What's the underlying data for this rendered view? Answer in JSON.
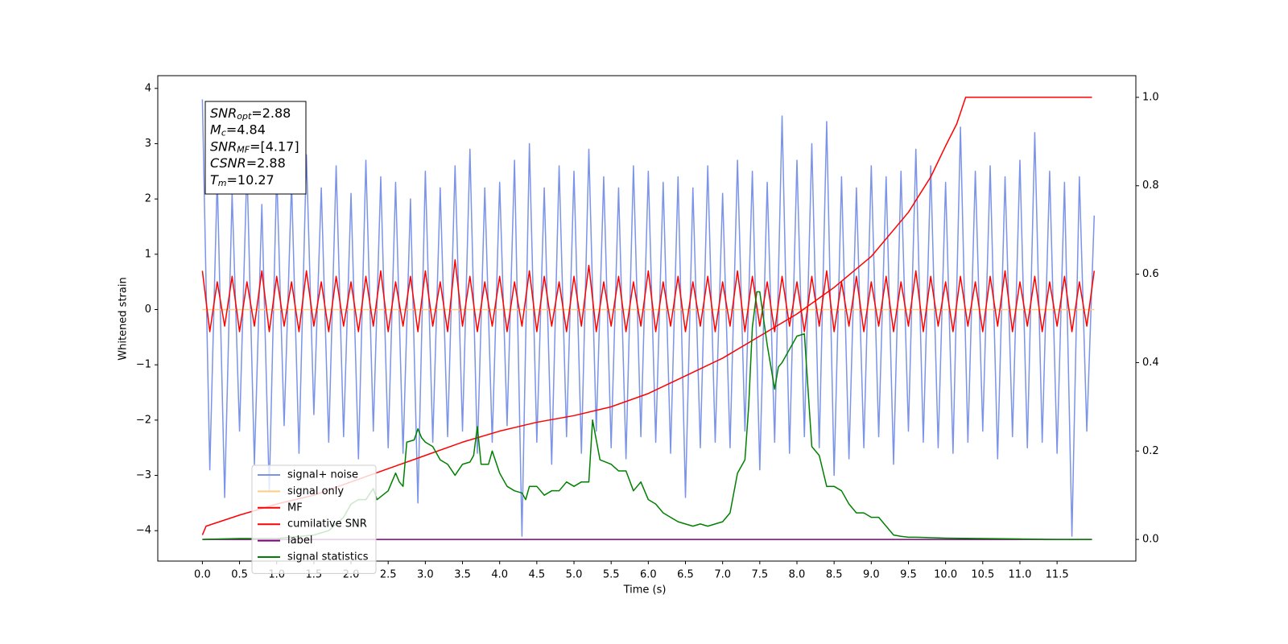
{
  "chart_data": {
    "type": "line",
    "xlabel": "Time (s)",
    "ylabel": "Whitened strain",
    "xlim": [
      -0.6,
      12.56
    ],
    "ylim": [
      -4.55,
      4.23
    ],
    "y2lim": [
      -0.049,
      1.049
    ],
    "xticks": [
      {
        "value": 0,
        "label": "0.0"
      },
      0.5,
      {
        "value": 1,
        "label": "1.0"
      },
      1.5,
      {
        "value": 2,
        "label": "2.0"
      },
      2.5,
      {
        "value": 3,
        "label": "3.0"
      },
      3.5,
      {
        "value": 4,
        "label": "4.0"
      },
      4.5,
      {
        "value": 5,
        "label": "5.0"
      },
      5.5,
      {
        "value": 6,
        "label": "6.0"
      },
      6.5,
      {
        "value": 7,
        "label": "7.0"
      },
      7.5,
      {
        "value": 8,
        "label": "8.0"
      },
      8.5,
      {
        "value": 9,
        "label": "9.0"
      },
      9.5,
      {
        "value": 10,
        "label": "10.0"
      },
      10.5,
      {
        "value": 11,
        "label": "11.0"
      },
      11.5
    ],
    "yticks": [
      {
        "value": -4,
        "label": "−4"
      },
      {
        "value": -3,
        "label": "−3"
      },
      {
        "value": -2,
        "label": "−2"
      },
      {
        "value": -1,
        "label": "−1"
      },
      0,
      1,
      2,
      3,
      4
    ],
    "y2ticks": [
      {
        "value": 0,
        "label": "0.0"
      },
      0.2,
      0.4,
      0.6,
      0.8,
      {
        "value": 1,
        "label": "1.0"
      }
    ],
    "legend": "lower left",
    "annotation": [
      {
        "symbol": "SNR",
        "sub": "opt",
        "text": "=2.88"
      },
      {
        "symbol": "M",
        "sub": "c",
        "text": "=4.84"
      },
      {
        "symbol": "SNR",
        "sub": "MF",
        "text": "=[4.17]"
      },
      {
        "symbol": "CSNR",
        "text": "=2.88"
      },
      {
        "symbol": "T",
        "sub": "m",
        "text": "=10.27"
      }
    ],
    "x": [
      0,
      0.1,
      0.2,
      0.3,
      0.4,
      0.5,
      0.6,
      0.7,
      0.8,
      0.9,
      1,
      1.1,
      1.2,
      1.3,
      1.4,
      1.5,
      1.6,
      1.7,
      1.8,
      1.9,
      2,
      2.1,
      2.2,
      2.3,
      2.4,
      2.5,
      2.6,
      2.7,
      2.8,
      2.9,
      3,
      3.1,
      3.2,
      3.3,
      3.4,
      3.5,
      3.6,
      3.7,
      3.8,
      3.9,
      4,
      4.1,
      4.2,
      4.3,
      4.4,
      4.5,
      4.6,
      4.7,
      4.8,
      4.9,
      5,
      5.1,
      5.2,
      5.3,
      5.4,
      5.5,
      5.6,
      5.7,
      5.8,
      5.9,
      6,
      6.1,
      6.2,
      6.3,
      6.4,
      6.5,
      6.6,
      6.7,
      6.8,
      6.9,
      7,
      7.1,
      7.2,
      7.3,
      7.4,
      7.5,
      7.6,
      7.7,
      7.8,
      7.9,
      8,
      8.1,
      8.2,
      8.3,
      8.4,
      8.5,
      8.6,
      8.7,
      8.8,
      8.9,
      9,
      9.1,
      9.2,
      9.3,
      9.4,
      9.5,
      9.6,
      9.7,
      9.8,
      9.9,
      10,
      10.1,
      10.2,
      10.3,
      10.4,
      10.5,
      10.6,
      10.7,
      10.8,
      10.9,
      11,
      11.1,
      11.2,
      11.3,
      11.4,
      11.5,
      11.6,
      11.7,
      11.8,
      11.9,
      12
    ],
    "series": [
      {
        "name": "signal+ noise",
        "color": "#7b93e8",
        "axis": "y",
        "values": [
          3.8,
          -2.9,
          2.4,
          -3.4,
          2.1,
          -2.2,
          2.6,
          -2.8,
          1.9,
          -3.3,
          2.5,
          -2.1,
          2.3,
          -2.6,
          2.8,
          -1.9,
          2.2,
          -2.4,
          2.6,
          -2.3,
          2.1,
          -2.7,
          2.7,
          -2.2,
          2.4,
          -2.5,
          2.3,
          -2.6,
          2,
          -3.5,
          2.5,
          -2.4,
          2.2,
          -2.3,
          2.6,
          -2.2,
          2.9,
          -2.6,
          2.2,
          -2.4,
          2.3,
          -2.1,
          2.7,
          -4.1,
          3,
          -2.4,
          2.2,
          -2.8,
          2.6,
          -2.3,
          2.5,
          -2.6,
          2.9,
          -2.2,
          2.4,
          -2.5,
          2.2,
          -2.7,
          2.6,
          -2.3,
          2.5,
          -2.4,
          2.3,
          -2.6,
          2.4,
          -3.4,
          2.2,
          -2.5,
          2.6,
          -2.4,
          2.1,
          -2.5,
          2.7,
          -2.2,
          2.5,
          -2.9,
          2.3,
          -2.4,
          3.5,
          -2.6,
          2.7,
          -2.3,
          3,
          -2.5,
          3.4,
          -3,
          2.4,
          -2.7,
          2.2,
          -2.5,
          2.6,
          -2.3,
          2.4,
          -2.8,
          2.5,
          -2.2,
          2.9,
          -2.4,
          2.6,
          -2.5,
          2.3,
          -2.6,
          3.3,
          -2.4,
          2.5,
          -2.2,
          2.6,
          -2.7,
          2.4,
          -2.3,
          2.7,
          -2.5,
          3.2,
          -2.4,
          2.5,
          -2.6,
          2.3,
          -4.1,
          2.4,
          -2.2,
          1.7
        ]
      },
      {
        "name": "signal only",
        "color": "#ffcc80",
        "axis": "y",
        "x": [
          0,
          12
        ],
        "values": [
          0,
          0
        ]
      },
      {
        "name": "MF",
        "color": "#ff0000",
        "axis": "y",
        "values": [
          0.7,
          -0.4,
          0.5,
          -0.3,
          0.6,
          -0.4,
          0.5,
          -0.3,
          0.7,
          -0.4,
          0.6,
          -0.3,
          0.5,
          -0.4,
          0.7,
          -0.3,
          0.5,
          -0.4,
          0.6,
          -0.3,
          0.5,
          -0.4,
          0.6,
          -0.3,
          0.7,
          -0.4,
          0.5,
          -0.3,
          0.6,
          -0.4,
          0.7,
          -0.3,
          0.5,
          -0.4,
          0.9,
          -0.3,
          0.6,
          -0.4,
          0.5,
          -0.3,
          0.6,
          -0.4,
          0.5,
          -0.3,
          0.7,
          -0.4,
          0.6,
          -0.3,
          0.5,
          -0.4,
          0.6,
          -0.3,
          0.8,
          -0.4,
          0.5,
          -0.3,
          0.6,
          -0.4,
          0.5,
          -0.3,
          0.7,
          -0.4,
          0.5,
          -0.3,
          0.6,
          -0.4,
          0.5,
          -0.3,
          0.6,
          -0.4,
          0.5,
          -0.3,
          0.7,
          -0.4,
          0.6,
          -0.3,
          0.5,
          -0.4,
          0.6,
          -0.3,
          0.5,
          -0.4,
          0.6,
          -0.3,
          0.7,
          -0.4,
          0.5,
          -0.3,
          0.6,
          -0.4,
          0.5,
          -0.3,
          0.6,
          -0.4,
          0.5,
          -0.3,
          0.7,
          -0.4,
          0.6,
          -0.3,
          0.5,
          -0.4,
          0.6,
          -0.3,
          0.5,
          -0.4,
          0.6,
          -0.3,
          0.7,
          -0.4,
          0.5,
          -0.3,
          0.6,
          -0.4,
          0.5,
          -0.3,
          0.6,
          -0.4,
          0.5,
          -0.3,
          0.7
        ]
      },
      {
        "name": "cumilative SNR",
        "color": "#ff0000",
        "axis": "y2",
        "x": [
          0,
          0.05,
          0.5,
          1,
          1.5,
          2,
          2.5,
          3,
          3.5,
          4,
          4.5,
          5,
          5.5,
          6,
          6.5,
          7,
          7.5,
          8,
          8.5,
          9,
          9.5,
          9.8,
          10,
          10.15,
          10.27,
          11.97
        ],
        "values": [
          0.01,
          0.03,
          0.055,
          0.08,
          0.1,
          0.13,
          0.16,
          0.19,
          0.22,
          0.245,
          0.265,
          0.28,
          0.3,
          0.33,
          0.37,
          0.41,
          0.46,
          0.51,
          0.57,
          0.64,
          0.74,
          0.82,
          0.89,
          0.94,
          1,
          1
        ]
      },
      {
        "name": "label",
        "color": "#800080",
        "axis": "y2",
        "x": [
          0,
          11.97
        ],
        "values": [
          0,
          0
        ]
      },
      {
        "name": "signal statistics",
        "color": "#008000",
        "axis": "y2",
        "x": [
          0,
          0.5,
          1,
          1.5,
          1.7,
          1.9,
          2,
          2.1,
          2.2,
          2.3,
          2.35,
          2.5,
          2.6,
          2.65,
          2.7,
          2.75,
          2.85,
          2.9,
          2.95,
          3,
          3.1,
          3.2,
          3.3,
          3.4,
          3.5,
          3.6,
          3.65,
          3.7,
          3.75,
          3.85,
          3.9,
          4,
          4.1,
          4.2,
          4.3,
          4.35,
          4.4,
          4.5,
          4.6,
          4.7,
          4.8,
          4.9,
          5,
          5.1,
          5.2,
          5.25,
          5.35,
          5.5,
          5.6,
          5.7,
          5.8,
          5.9,
          6,
          6.1,
          6.2,
          6.3,
          6.4,
          6.5,
          6.6,
          6.7,
          6.8,
          6.9,
          7,
          7.1,
          7.2,
          7.3,
          7.35,
          7.4,
          7.46,
          7.5,
          7.6,
          7.7,
          7.75,
          7.8,
          7.9,
          8,
          8.1,
          8.2,
          8.3,
          8.4,
          8.5,
          8.6,
          8.7,
          8.8,
          8.9,
          9,
          9.1,
          9.2,
          9.3,
          9.4,
          9.5,
          9.6,
          10,
          10.5,
          11,
          11.5,
          11.97
        ],
        "values": [
          0,
          0.002,
          0.002,
          0.01,
          0.02,
          0.05,
          0.08,
          0.09,
          0.09,
          0.115,
          0.09,
          0.11,
          0.15,
          0.13,
          0.12,
          0.22,
          0.225,
          0.25,
          0.23,
          0.22,
          0.21,
          0.18,
          0.17,
          0.145,
          0.17,
          0.175,
          0.19,
          0.255,
          0.17,
          0.17,
          0.2,
          0.15,
          0.12,
          0.11,
          0.105,
          0.09,
          0.12,
          0.12,
          0.1,
          0.11,
          0.11,
          0.13,
          0.12,
          0.13,
          0.13,
          0.27,
          0.18,
          0.17,
          0.155,
          0.155,
          0.11,
          0.13,
          0.09,
          0.08,
          0.06,
          0.05,
          0.04,
          0.035,
          0.03,
          0.035,
          0.03,
          0.035,
          0.04,
          0.06,
          0.15,
          0.18,
          0.3,
          0.48,
          0.56,
          0.56,
          0.44,
          0.34,
          0.39,
          0.4,
          0.43,
          0.46,
          0.465,
          0.21,
          0.19,
          0.12,
          0.12,
          0.11,
          0.08,
          0.06,
          0.06,
          0.05,
          0.05,
          0.03,
          0.01,
          0.007,
          0.005,
          0.005,
          0.003,
          0.002,
          0.001,
          0,
          0
        ]
      }
    ]
  }
}
